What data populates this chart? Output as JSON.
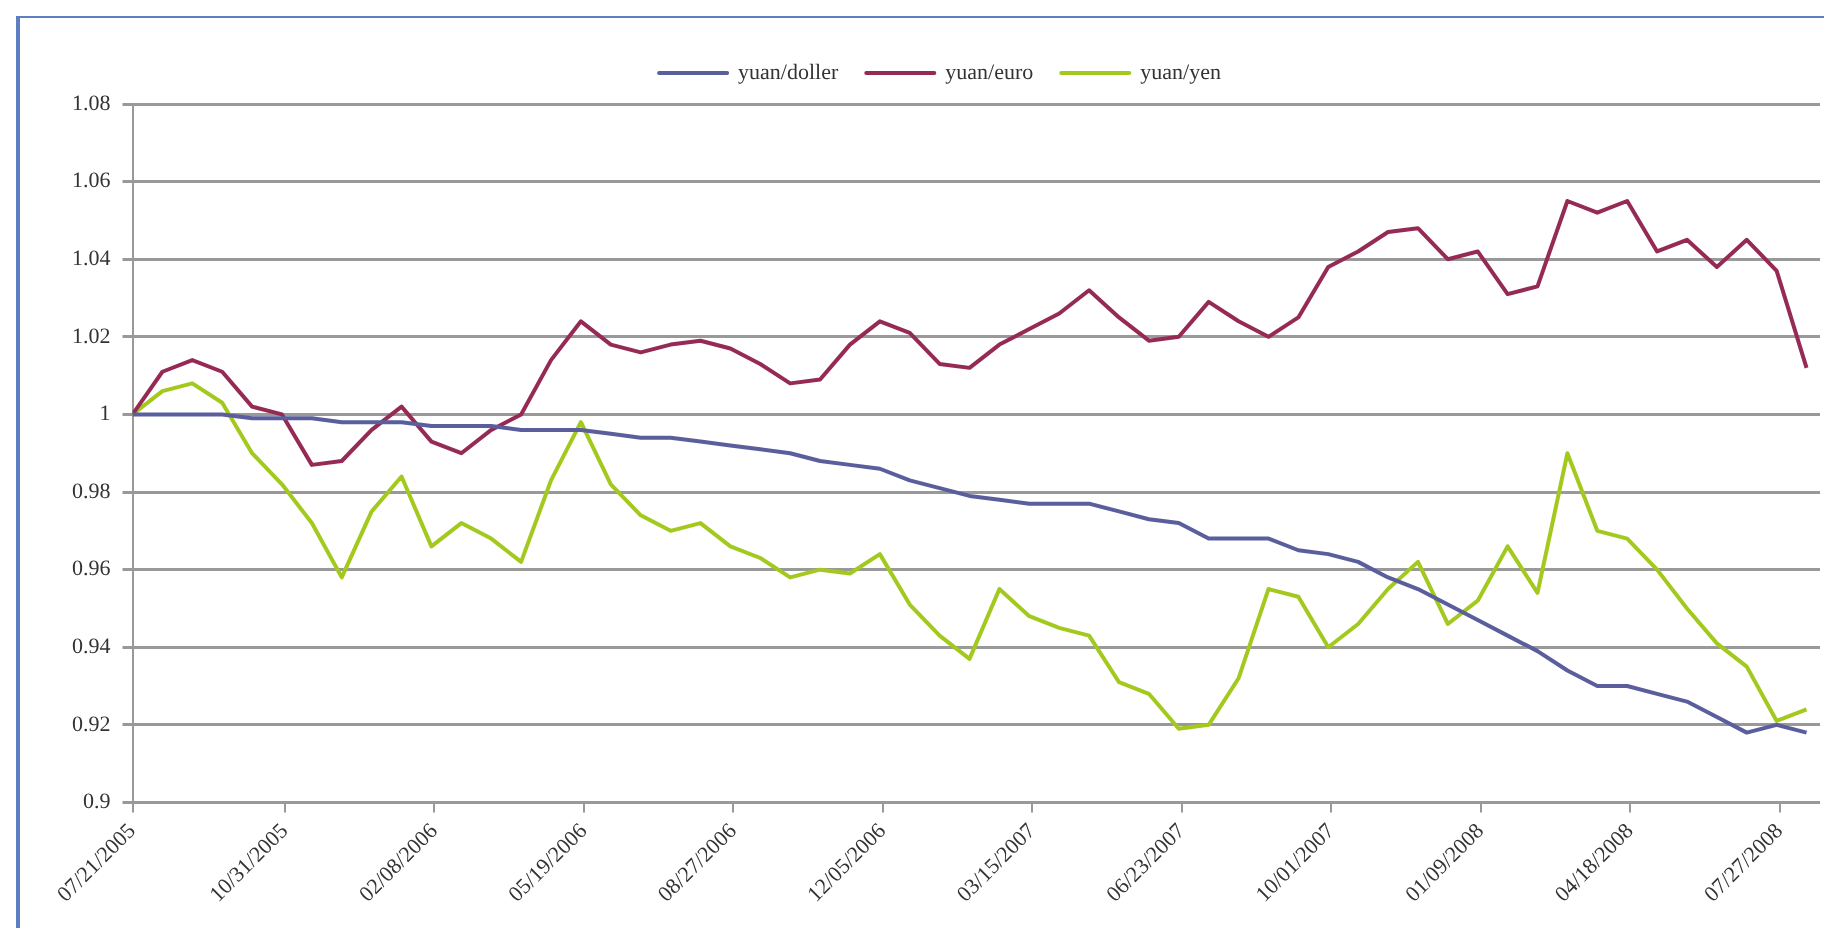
{
  "chart_data": {
    "type": "line",
    "x": [
      "2005-07-21",
      "2005-08-10",
      "2005-08-30",
      "2005-09-19",
      "2005-10-09",
      "2005-10-29",
      "2005-11-18",
      "2005-12-08",
      "2005-12-28",
      "2006-01-17",
      "2006-02-06",
      "2006-02-26",
      "2006-03-18",
      "2006-04-07",
      "2006-04-27",
      "2006-05-17",
      "2006-06-06",
      "2006-06-26",
      "2006-07-16",
      "2006-08-05",
      "2006-08-25",
      "2006-09-14",
      "2006-10-04",
      "2006-10-24",
      "2006-11-13",
      "2006-12-03",
      "2006-12-23",
      "2007-01-12",
      "2007-02-01",
      "2007-02-21",
      "2007-03-13",
      "2007-04-02",
      "2007-04-22",
      "2007-05-12",
      "2007-06-01",
      "2007-06-21",
      "2007-07-11",
      "2007-07-31",
      "2007-08-20",
      "2007-09-09",
      "2007-09-29",
      "2007-10-19",
      "2007-11-08",
      "2007-11-28",
      "2007-12-18",
      "2008-01-07",
      "2008-01-27",
      "2008-02-16",
      "2008-03-07",
      "2008-03-27",
      "2008-04-16",
      "2008-05-06",
      "2008-05-26",
      "2008-06-15",
      "2008-07-05",
      "2008-07-25",
      "2008-08-14"
    ],
    "series": [
      {
        "name": "yuan/doller",
        "color": "#5a5e9c",
        "values": [
          1.0,
          1.0,
          1.0,
          1.0,
          0.999,
          0.999,
          0.999,
          0.998,
          0.998,
          0.998,
          0.997,
          0.997,
          0.997,
          0.996,
          0.996,
          0.996,
          0.995,
          0.994,
          0.994,
          0.993,
          0.992,
          0.991,
          0.99,
          0.988,
          0.987,
          0.986,
          0.983,
          0.981,
          0.979,
          0.978,
          0.977,
          0.977,
          0.977,
          0.975,
          0.973,
          0.972,
          0.968,
          0.968,
          0.968,
          0.965,
          0.964,
          0.962,
          0.958,
          0.955,
          0.951,
          0.947,
          0.943,
          0.939,
          0.934,
          0.93,
          0.93,
          0.928,
          0.926,
          0.922,
          0.918,
          0.92,
          0.918
        ]
      },
      {
        "name": "yuan/euro",
        "color": "#952a55",
        "values": [
          1.0,
          1.011,
          1.014,
          1.011,
          1.002,
          1.0,
          0.987,
          0.988,
          0.996,
          1.002,
          0.993,
          0.99,
          0.996,
          1.0,
          1.014,
          1.024,
          1.018,
          1.016,
          1.018,
          1.019,
          1.017,
          1.013,
          1.008,
          1.009,
          1.018,
          1.024,
          1.021,
          1.013,
          1.012,
          1.018,
          1.022,
          1.026,
          1.032,
          1.025,
          1.019,
          1.02,
          1.029,
          1.024,
          1.02,
          1.025,
          1.038,
          1.042,
          1.047,
          1.048,
          1.04,
          1.042,
          1.031,
          1.033,
          1.055,
          1.052,
          1.055,
          1.042,
          1.045,
          1.038,
          1.045,
          1.037,
          1.012
        ]
      },
      {
        "name": "yuan/yen",
        "color": "#a4c91e",
        "values": [
          1.0,
          1.006,
          1.008,
          1.003,
          0.99,
          0.982,
          0.972,
          0.958,
          0.975,
          0.984,
          0.966,
          0.972,
          0.968,
          0.962,
          0.983,
          0.998,
          0.982,
          0.974,
          0.97,
          0.972,
          0.966,
          0.963,
          0.958,
          0.96,
          0.959,
          0.964,
          0.951,
          0.943,
          0.937,
          0.955,
          0.948,
          0.945,
          0.943,
          0.931,
          0.928,
          0.919,
          0.92,
          0.932,
          0.955,
          0.953,
          0.94,
          0.946,
          0.955,
          0.962,
          0.946,
          0.952,
          0.966,
          0.954,
          0.99,
          0.97,
          0.968,
          0.96,
          0.95,
          0.941,
          0.935,
          0.921,
          0.924
        ]
      }
    ],
    "xlim": [
      "2005-07-21",
      "2008-08-23"
    ],
    "xticks": [
      {
        "value": "2005-07-21",
        "label": "07/21/2005"
      },
      {
        "value": "2005-10-31",
        "label": "10/31/2005"
      },
      {
        "value": "2006-02-08",
        "label": "02/08/2006"
      },
      {
        "value": "2006-05-19",
        "label": "05/19/2006"
      },
      {
        "value": "2006-08-27",
        "label": "08/27/2006"
      },
      {
        "value": "2006-12-05",
        "label": "12/05/2006"
      },
      {
        "value": "2007-03-15",
        "label": "03/15/2007"
      },
      {
        "value": "2007-06-23",
        "label": "06/23/2007"
      },
      {
        "value": "2007-10-01",
        "label": "10/01/2007"
      },
      {
        "value": "2008-01-09",
        "label": "01/09/2008"
      },
      {
        "value": "2008-04-18",
        "label": "04/18/2008"
      },
      {
        "value": "2008-07-27",
        "label": "07/27/2008"
      }
    ],
    "ylim": [
      0.9,
      1.08
    ],
    "yticks": [
      0.9,
      0.92,
      0.94,
      0.96,
      0.98,
      1,
      1.02,
      1.04,
      1.06,
      1.08
    ],
    "grid": "y",
    "legend": "top",
    "marker": "none",
    "line_style": "solid"
  }
}
